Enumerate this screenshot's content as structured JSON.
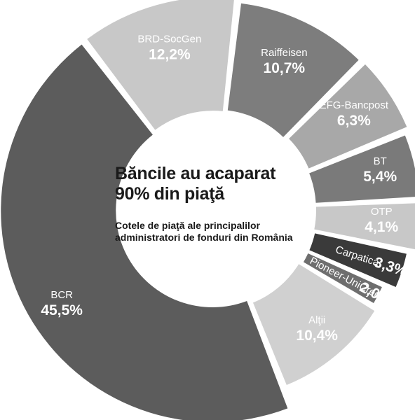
{
  "chart_data": {
    "type": "pie",
    "title_line1": "Băncile au acaparat",
    "title_line2": "90% din piaţă",
    "subtitle_line1": "Cotele de piaţă ale principalilor",
    "subtitle_line2": "administratori de fonduri din România",
    "slices": [
      {
        "name": "BRD-SocGen",
        "label": "12,2%",
        "value": 12.2,
        "color": "#c8c8c8",
        "text": "#3a3a3a"
      },
      {
        "name": "Raiffeisen",
        "label": "10,7%",
        "value": 10.7,
        "color": "#7d7d7d",
        "text": "#ffffff"
      },
      {
        "name": "EFG-Bancpost",
        "label": "6,3%",
        "value": 6.3,
        "color": "#a8a8a8",
        "text": "#ffffff"
      },
      {
        "name": "BT",
        "label": "5,4%",
        "value": 5.4,
        "color": "#7a7a7a",
        "text": "#ffffff"
      },
      {
        "name": "OTP",
        "label": "4,1%",
        "value": 4.1,
        "color": "#c8c8c8",
        "text": "#3a3a3a"
      },
      {
        "name": "Carpatica",
        "label": "3,3%",
        "value": 3.3,
        "color": "#3a3a3a",
        "text": "#ffffff"
      },
      {
        "name": "Pioneer-UniCredit",
        "label": "2,0%",
        "value": 2.0,
        "color": "#6e6e6e",
        "text": "#ffffff"
      },
      {
        "name": "Alţii",
        "label": "10,4%",
        "value": 10.4,
        "color": "#d0d0d0",
        "text": "#3a3a3a"
      },
      {
        "name": "BCR",
        "label": "45,5%",
        "value": 45.5,
        "color": "#5c5c5c",
        "text": "#ffffff"
      }
    ]
  }
}
